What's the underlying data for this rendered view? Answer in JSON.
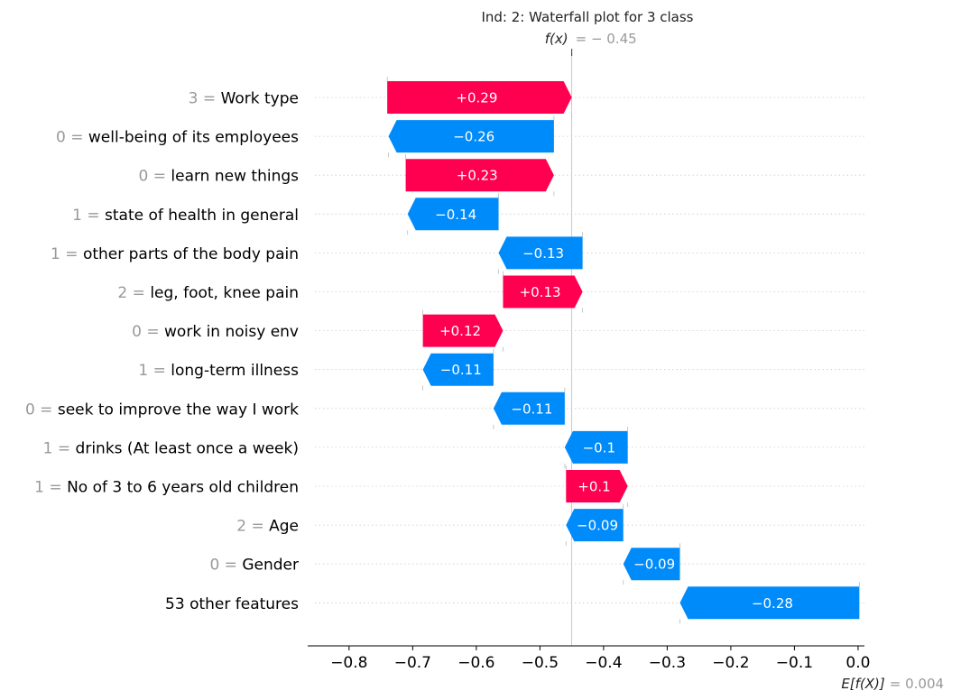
{
  "chart_data": {
    "type": "waterfall",
    "title": "Ind: 2: Waterfall plot for 3 class",
    "fx": {
      "label": "f(x)",
      "value_text": "= − 0.45",
      "value": -0.45
    },
    "base": {
      "label": "E[f(X)]",
      "value_text": "= 0.004",
      "value": 0.004
    },
    "xlim": [
      -0.865,
      0.01
    ],
    "xticks": [
      {
        "value": -0.8,
        "label": "−0.8"
      },
      {
        "value": -0.7,
        "label": "−0.7"
      },
      {
        "value": -0.6,
        "label": "−0.6"
      },
      {
        "value": -0.5,
        "label": "−0.5"
      },
      {
        "value": -0.4,
        "label": "−0.4"
      },
      {
        "value": -0.3,
        "label": "−0.3"
      },
      {
        "value": -0.2,
        "label": "−0.2"
      },
      {
        "value": -0.1,
        "label": "−0.1"
      },
      {
        "value": 0.0,
        "label": "0.0"
      }
    ],
    "features": [
      {
        "value": "3",
        "name": "Work type",
        "shap": 0.29,
        "start": -0.74,
        "end": -0.45,
        "label": "+0.29"
      },
      {
        "value": "0",
        "name": "well-being of its employees",
        "shap": -0.26,
        "start": -0.478,
        "end": -0.738,
        "label": "−0.26"
      },
      {
        "value": "0",
        "name": "learn new things",
        "shap": 0.23,
        "start": -0.711,
        "end": -0.478,
        "label": "+0.23"
      },
      {
        "value": "1",
        "name": "state of health in general",
        "shap": -0.14,
        "start": -0.565,
        "end": -0.708,
        "label": "−0.14"
      },
      {
        "value": "1",
        "name": "other parts of the body pain",
        "shap": -0.13,
        "start": -0.433,
        "end": -0.565,
        "label": "−0.13"
      },
      {
        "value": "2",
        "name": "leg, foot, knee pain",
        "shap": 0.13,
        "start": -0.558,
        "end": -0.433,
        "label": "+0.13"
      },
      {
        "value": "0",
        "name": "work in noisy env",
        "shap": 0.12,
        "start": -0.684,
        "end": -0.558,
        "label": "+0.12"
      },
      {
        "value": "1",
        "name": "long-term illness",
        "shap": -0.11,
        "start": -0.573,
        "end": -0.684,
        "label": "−0.11"
      },
      {
        "value": "0",
        "name": "seek to improve the way I work",
        "shap": -0.11,
        "start": -0.461,
        "end": -0.573,
        "label": "−0.11"
      },
      {
        "value": "1",
        "name": "drinks (At least once a week)",
        "shap": -0.1,
        "start": -0.362,
        "end": -0.461,
        "label": "−0.1"
      },
      {
        "value": "1",
        "name": "No of 3 to 6 years old children",
        "shap": 0.1,
        "start": -0.459,
        "end": -0.362,
        "label": "+0.1"
      },
      {
        "value": "2",
        "name": "Age",
        "shap": -0.09,
        "start": -0.369,
        "end": -0.459,
        "label": "−0.09"
      },
      {
        "value": "0",
        "name": "Gender",
        "shap": -0.09,
        "start": -0.28,
        "end": -0.369,
        "label": "−0.09"
      },
      {
        "value": "",
        "name": "53 other features",
        "shap": -0.28,
        "start": 0.002,
        "end": -0.28,
        "label": "−0.28"
      }
    ],
    "colors": {
      "positive": "#ff0051",
      "negative": "#008bfb",
      "grid": "#cccccc",
      "axis": "#000000"
    },
    "grid": true
  }
}
